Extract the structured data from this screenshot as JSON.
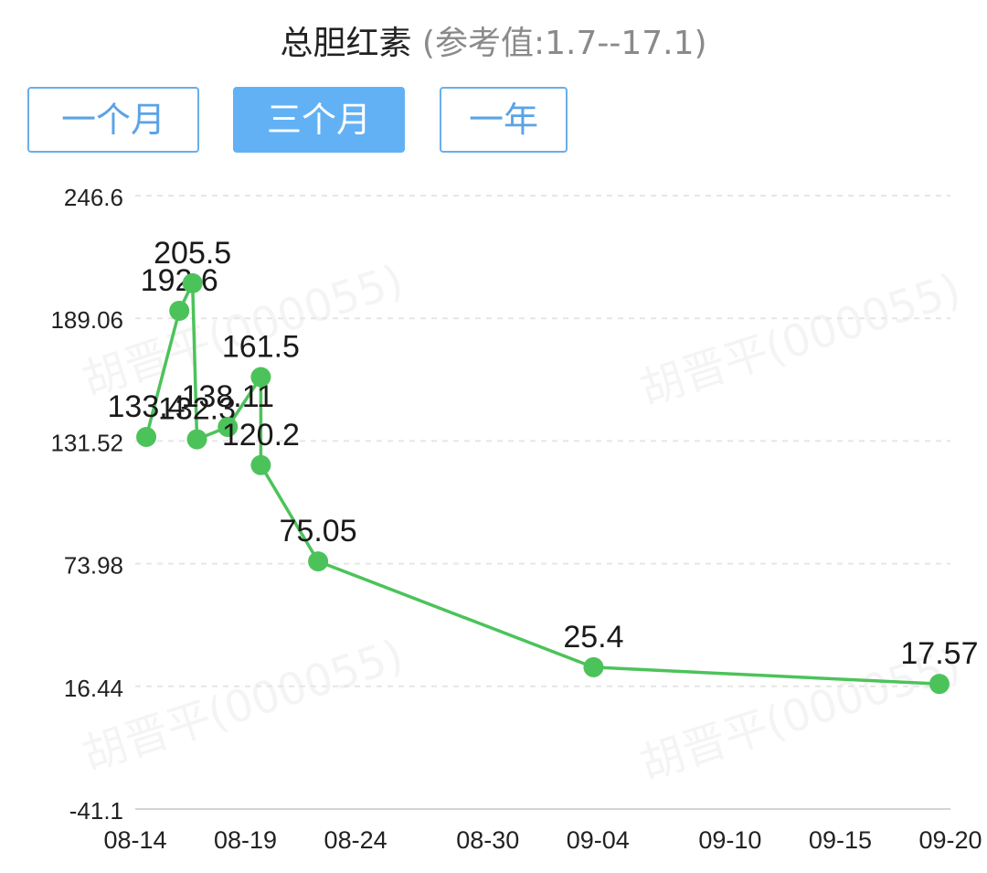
{
  "header": {
    "title": "总胆红素",
    "reference": "(参考值:1.7--17.1)"
  },
  "range_tabs": [
    {
      "label": "一个月",
      "active": false
    },
    {
      "label": "三个月",
      "active": true
    },
    {
      "label": "一年",
      "active": false
    }
  ],
  "watermark": "胡晋平(000055)",
  "colors": {
    "series": "#4cc35a",
    "tab_active_bg": "#62b1f5",
    "tab_border": "#6aaee8",
    "grid": "#e6e6e6"
  },
  "chart_data": {
    "type": "line",
    "y_ticks": [
      "246.6",
      "189.06",
      "131.52",
      "73.98",
      "16.44",
      "-41.1"
    ],
    "y_tick_values": [
      246.6,
      189.06,
      131.52,
      73.98,
      16.44,
      -41.1
    ],
    "ylim": [
      -41.1,
      246.6
    ],
    "x_ticks": [
      "08-14",
      "08-19",
      "08-24",
      "08-30",
      "09-04",
      "09-10",
      "09-15",
      "09-20"
    ],
    "x_tick_days": [
      0,
      5,
      10,
      16,
      21,
      27,
      32,
      37
    ],
    "grid": "horizontal dashed",
    "series": [
      {
        "points": [
          {
            "day": 0.5,
            "y": 133.4,
            "label": "133.4"
          },
          {
            "day": 2.0,
            "y": 192.6,
            "label": "192.6"
          },
          {
            "day": 2.6,
            "y": 205.5,
            "label": "205.5"
          },
          {
            "day": 2.8,
            "y": 132.3,
            "label": "132.3"
          },
          {
            "day": 4.2,
            "y": 138.11,
            "label": "138.11"
          },
          {
            "day": 5.7,
            "y": 161.5,
            "label": "161.5"
          },
          {
            "day": 5.7,
            "y": 120.2,
            "label": "120.2"
          },
          {
            "day": 8.3,
            "y": 75.05,
            "label": "75.05"
          },
          {
            "day": 20.8,
            "y": 25.4,
            "label": "25.4"
          },
          {
            "day": 36.5,
            "y": 17.57,
            "label": "17.57"
          }
        ]
      }
    ]
  }
}
